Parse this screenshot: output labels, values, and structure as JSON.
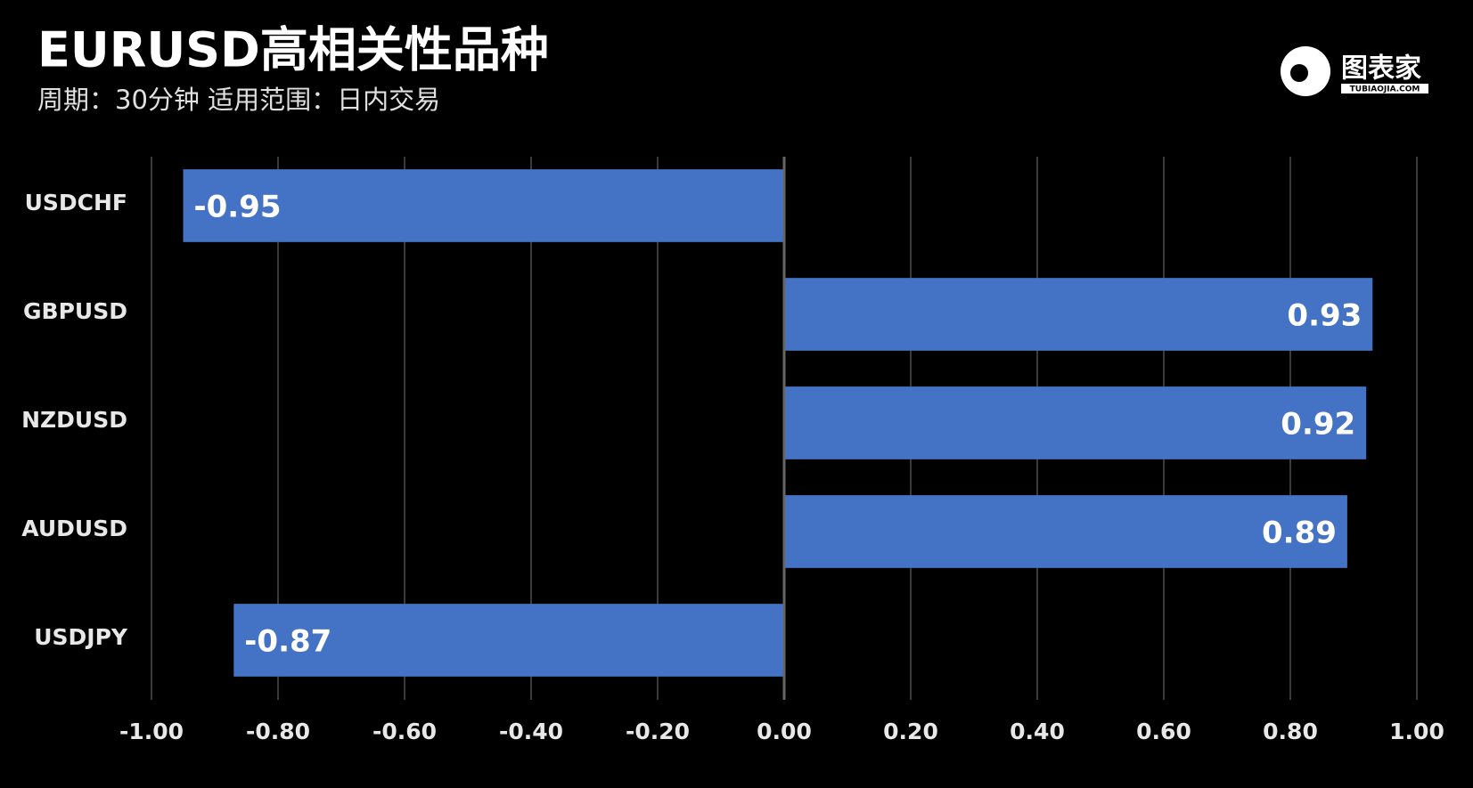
{
  "chart_data": {
    "type": "bar",
    "orientation": "horizontal",
    "title": "EURUSD高相关性品种",
    "subtitle": "周期：30分钟  适用范围：日内交易",
    "logo": "图表家",
    "logo_url": "TUBIAOJIA.COM",
    "categories": [
      "USDCHF",
      "GBPUSD",
      "NZDUSD",
      "AUDUSD",
      "USDJPY"
    ],
    "values": [
      -0.95,
      0.93,
      0.92,
      0.89,
      -0.87
    ],
    "color": "#4472c4",
    "xlim": [
      -1,
      1
    ],
    "xticks": [
      {
        "value": -1,
        "label": "-1.00"
      },
      {
        "value": -0.8,
        "label": "-0.80"
      },
      {
        "value": -0.6,
        "label": "-0.60"
      },
      {
        "value": -0.4,
        "label": "-0.40"
      },
      {
        "value": -0.2,
        "label": "-0.20"
      },
      {
        "value": 0,
        "label": "0.00"
      },
      {
        "value": 0.2,
        "label": "0.20"
      },
      {
        "value": 0.4,
        "label": "0.40"
      },
      {
        "value": 0.6,
        "label": "0.60"
      },
      {
        "value": 0.8,
        "label": "0.80"
      },
      {
        "value": 1,
        "label": "1.00"
      }
    ],
    "grid": true
  }
}
